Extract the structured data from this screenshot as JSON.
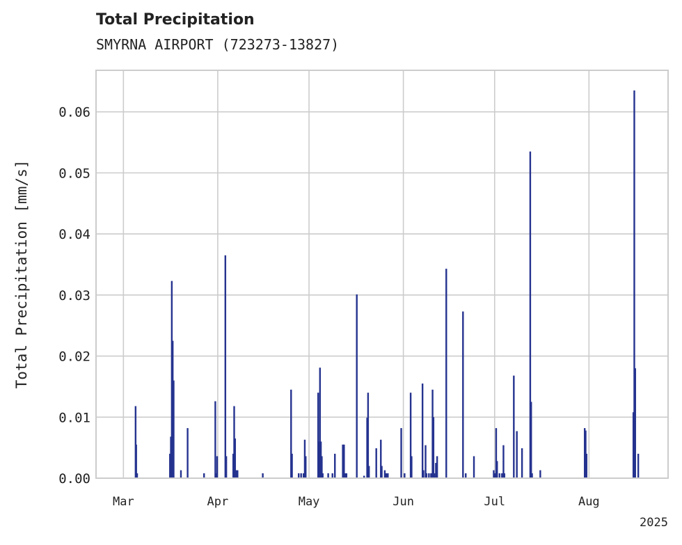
{
  "chart_data": {
    "type": "bar",
    "title": "Total Precipitation",
    "subtitle": "SMYRNA AIRPORT (723273-13827)",
    "ylabel": "Total Precipitation [mm/s]",
    "xlabel": "",
    "year_label": "2025",
    "x_start": "2025-02-20",
    "x_end": "2025-08-27",
    "ylim": [
      0,
      0.0668
    ],
    "yticks": [
      0.0,
      0.01,
      0.02,
      0.03,
      0.04,
      0.05,
      0.06
    ],
    "ytick_labels": [
      "0.00",
      "0.01",
      "0.02",
      "0.03",
      "0.04",
      "0.05",
      "0.06"
    ],
    "xticks": [
      {
        "label": "Mar",
        "day": 9
      },
      {
        "label": "Apr",
        "day": 40
      },
      {
        "label": "May",
        "day": 70
      },
      {
        "label": "Jun",
        "day": 101
      },
      {
        "label": "Jul",
        "day": 131
      },
      {
        "label": "Aug",
        "day": 162
      }
    ],
    "grid": true,
    "series_color": "#25338f",
    "series": [
      {
        "name": "Total Precipitation",
        "points": [
          [
            13.0,
            0.0118
          ],
          [
            13.2,
            0.0055
          ],
          [
            13.5,
            0.0008
          ],
          [
            24.3,
            0.004
          ],
          [
            24.6,
            0.0068
          ],
          [
            24.9,
            0.0323
          ],
          [
            25.2,
            0.0225
          ],
          [
            25.5,
            0.016
          ],
          [
            27.9,
            0.0013
          ],
          [
            30.1,
            0.0082
          ],
          [
            35.5,
            0.0008
          ],
          [
            39.2,
            0.0126
          ],
          [
            39.5,
            0.0008
          ],
          [
            39.8,
            0.0036
          ],
          [
            42.5,
            0.0365
          ],
          [
            42.8,
            0.0036
          ],
          [
            45.1,
            0.004
          ],
          [
            45.4,
            0.0118
          ],
          [
            45.7,
            0.0065
          ],
          [
            46.1,
            0.0013
          ],
          [
            46.5,
            0.0013
          ],
          [
            54.8,
            0.0008
          ],
          [
            64.1,
            0.0145
          ],
          [
            64.4,
            0.004
          ],
          [
            66.6,
            0.0008
          ],
          [
            67.4,
            0.0008
          ],
          [
            68.2,
            0.0008
          ],
          [
            68.6,
            0.0063
          ],
          [
            68.9,
            0.0036
          ],
          [
            73.0,
            0.014
          ],
          [
            73.3,
            0.006
          ],
          [
            73.6,
            0.0181
          ],
          [
            73.9,
            0.006
          ],
          [
            74.2,
            0.0036
          ],
          [
            74.5,
            0.0008
          ],
          [
            76.3,
            0.0008
          ],
          [
            77.7,
            0.0008
          ],
          [
            78.5,
            0.004
          ],
          [
            81.1,
            0.0055
          ],
          [
            81.5,
            0.0055
          ],
          [
            81.9,
            0.0008
          ],
          [
            82.3,
            0.0008
          ],
          [
            85.7,
            0.0301
          ],
          [
            88.1,
            0.0004
          ],
          [
            89.1,
            0.0099
          ],
          [
            89.4,
            0.014
          ],
          [
            89.7,
            0.002
          ],
          [
            92.1,
            0.0049
          ],
          [
            93.6,
            0.0063
          ],
          [
            93.9,
            0.002
          ],
          [
            94.9,
            0.0013
          ],
          [
            95.4,
            0.0008
          ],
          [
            95.9,
            0.0008
          ],
          [
            100.3,
            0.0082
          ],
          [
            101.4,
            0.0008
          ],
          [
            103.4,
            0.014
          ],
          [
            103.7,
            0.0036
          ],
          [
            107.3,
            0.0155
          ],
          [
            107.6,
            0.0013
          ],
          [
            108.3,
            0.0054
          ],
          [
            108.6,
            0.0008
          ],
          [
            109.4,
            0.0008
          ],
          [
            110.1,
            0.0008
          ],
          [
            110.6,
            0.0145
          ],
          [
            110.9,
            0.01
          ],
          [
            111.2,
            0.0008
          ],
          [
            111.7,
            0.0025
          ],
          [
            112.1,
            0.0036
          ],
          [
            115.1,
            0.0343
          ],
          [
            120.6,
            0.0273
          ],
          [
            121.5,
            0.0008
          ],
          [
            124.2,
            0.0036
          ],
          [
            130.7,
            0.0013
          ],
          [
            131.1,
            0.0008
          ],
          [
            131.5,
            0.0082
          ],
          [
            131.8,
            0.0028
          ],
          [
            132.6,
            0.0008
          ],
          [
            133.4,
            0.0008
          ],
          [
            133.9,
            0.0054
          ],
          [
            134.2,
            0.0008
          ],
          [
            137.3,
            0.0168
          ],
          [
            138.3,
            0.0077
          ],
          [
            140.0,
            0.0049
          ],
          [
            142.7,
            0.0535
          ],
          [
            143.0,
            0.0125
          ],
          [
            143.3,
            0.0008
          ],
          [
            146.0,
            0.0013
          ],
          [
            160.6,
            0.0082
          ],
          [
            160.9,
            0.0078
          ],
          [
            161.2,
            0.004
          ],
          [
            176.6,
            0.0108
          ],
          [
            176.9,
            0.0635
          ],
          [
            177.2,
            0.018
          ],
          [
            178.2,
            0.004
          ]
        ]
      }
    ]
  }
}
